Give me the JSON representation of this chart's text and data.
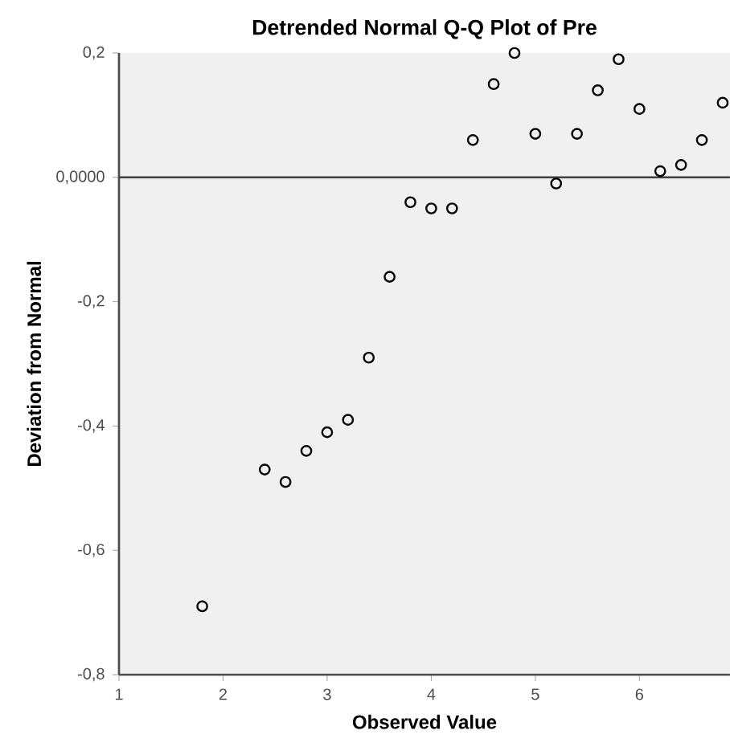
{
  "chart_data": {
    "type": "scatter",
    "title": "Detrended Normal Q-Q Plot of Pre",
    "xlabel": "Observed Value",
    "ylabel": "Deviation from Normal",
    "x": [
      1.8,
      2.4,
      2.6,
      2.8,
      3.0,
      3.2,
      3.4,
      3.6,
      3.8,
      4.0,
      4.2,
      4.4,
      4.6,
      4.8,
      5.0,
      5.2,
      5.4,
      5.6,
      5.8,
      6.0,
      6.2,
      6.4,
      6.6,
      6.8
    ],
    "values": [
      -0.69,
      -0.47,
      -0.49,
      -0.44,
      -0.41,
      -0.39,
      -0.29,
      -0.16,
      -0.04,
      -0.05,
      -0.05,
      0.06,
      0.15,
      0.2,
      0.07,
      -0.01,
      0.07,
      0.14,
      0.19,
      0.11,
      0.01,
      0.02,
      0.06,
      0.12
    ],
    "color": "#000000",
    "marker": "circle",
    "xlim": [
      1,
      6.87
    ],
    "xticks": [
      1,
      2,
      3,
      4,
      5,
      6
    ],
    "ylim": [
      -0.8,
      0.2
    ],
    "yticks": [
      {
        "value": -0.8,
        "label": "-0,8"
      },
      {
        "value": -0.6,
        "label": "-0,6"
      },
      {
        "value": -0.4,
        "label": "-0,4"
      },
      {
        "value": -0.2,
        "label": "-0,2"
      },
      {
        "value": 0,
        "label": "0,0000"
      },
      {
        "value": 0.2,
        "label": "0,2"
      }
    ],
    "ref_lines": [
      {
        "axis": "y",
        "value": 0,
        "color": "#404040"
      }
    ],
    "grid": false
  }
}
